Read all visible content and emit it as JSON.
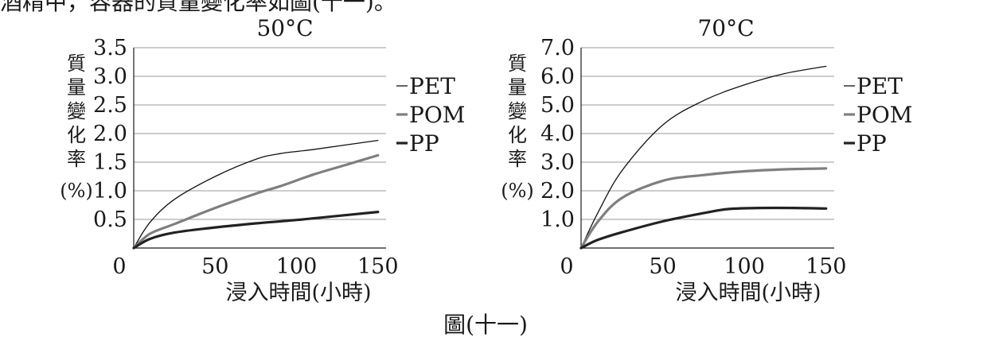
{
  "header_fragment": "酒精中，容器的質量變化率如圖(十一)。",
  "figure_caption": "圖(十一)",
  "charts": [
    {
      "type": "line",
      "title": "50°C",
      "ylabel": "質量變化率(%)",
      "ylabel_chars": [
        "質",
        "量",
        "變",
        "化",
        "率"
      ],
      "ylabel_unit": "(%)",
      "xlabel": "浸入時間(小時)",
      "xlim": [
        0,
        155
      ],
      "ylim": [
        0,
        3.5
      ],
      "xticks": [
        "0",
        "50",
        "100",
        "150"
      ],
      "xtick_values": [
        0,
        50,
        100,
        150
      ],
      "yticks": [
        "0.5",
        "1.0",
        "1.5",
        "2.0",
        "2.5",
        "3.0",
        "3.5"
      ],
      "ytick_values": [
        0.5,
        1.0,
        1.5,
        2.0,
        2.5,
        3.0,
        3.5
      ],
      "grid": true,
      "legend_position": "right",
      "series": [
        {
          "name": "PET",
          "color": "#111111",
          "style": "thin",
          "x": [
            0,
            10,
            25,
            50,
            75,
            90,
            110,
            130,
            150
          ],
          "y": [
            0,
            0.45,
            0.85,
            1.25,
            1.55,
            1.65,
            1.72,
            1.8,
            1.88
          ]
        },
        {
          "name": "POM",
          "color": "#7f7f7f",
          "style": "thick",
          "x": [
            0,
            10,
            25,
            50,
            75,
            90,
            110,
            130,
            150
          ],
          "y": [
            0,
            0.25,
            0.42,
            0.7,
            0.95,
            1.08,
            1.28,
            1.45,
            1.62
          ]
        },
        {
          "name": "PP",
          "color": "#222222",
          "style": "thick",
          "x": [
            0,
            10,
            25,
            50,
            75,
            100,
            125,
            150
          ],
          "y": [
            0,
            0.16,
            0.27,
            0.36,
            0.43,
            0.49,
            0.56,
            0.63
          ]
        }
      ]
    },
    {
      "type": "line",
      "title": "70°C",
      "ylabel": "質量變化率(%)",
      "ylabel_chars": [
        "質",
        "量",
        "變",
        "化",
        "率"
      ],
      "ylabel_unit": "(%)",
      "xlabel": "浸入時間(小時)",
      "xlim": [
        0,
        155
      ],
      "ylim": [
        0,
        7.0
      ],
      "xticks": [
        "0",
        "50",
        "100",
        "150"
      ],
      "xtick_values": [
        0,
        50,
        100,
        150
      ],
      "yticks": [
        "1.0",
        "2.0",
        "3.0",
        "4.0",
        "5.0",
        "6.0",
        "7.0"
      ],
      "ytick_values": [
        1.0,
        2.0,
        3.0,
        4.0,
        5.0,
        6.0,
        7.0
      ],
      "grid": true,
      "legend_position": "right",
      "series": [
        {
          "name": "PET",
          "color": "#111111",
          "style": "thin",
          "x": [
            0,
            10,
            25,
            50,
            75,
            100,
            125,
            150
          ],
          "y": [
            0,
            1.2,
            2.7,
            4.3,
            5.15,
            5.7,
            6.1,
            6.35
          ]
        },
        {
          "name": "POM",
          "color": "#7f7f7f",
          "style": "thick",
          "x": [
            0,
            10,
            25,
            50,
            75,
            100,
            125,
            150
          ],
          "y": [
            0,
            0.9,
            1.75,
            2.35,
            2.55,
            2.68,
            2.75,
            2.78
          ]
        },
        {
          "name": "PP",
          "color": "#222222",
          "style": "thick",
          "x": [
            0,
            10,
            25,
            50,
            75,
            90,
            110,
            130,
            150
          ],
          "y": [
            0,
            0.28,
            0.55,
            0.93,
            1.22,
            1.36,
            1.4,
            1.4,
            1.38
          ]
        }
      ]
    }
  ]
}
